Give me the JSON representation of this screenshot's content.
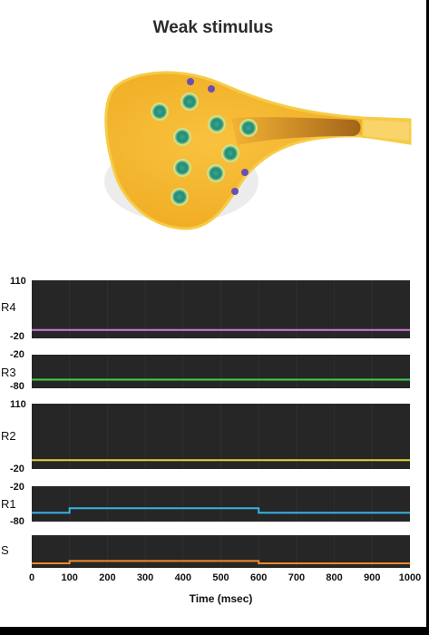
{
  "title": "Weak stimulus",
  "colors": {
    "soma": "#f4b631",
    "soma_edge": "#f8cf52",
    "vesicle": "#1f8b78",
    "receptor": "#6a4fb3",
    "panel_bg": "#262626",
    "R4": "#d47ad9",
    "R3": "#3fd24a",
    "R2": "#e8d23a",
    "R1": "#36b3e6",
    "S": "#f08a2a"
  },
  "chart_data": {
    "type": "line",
    "x_label": "Time (msec)",
    "xlim": [
      0,
      1000
    ],
    "x_ticks": [
      "0",
      "100",
      "200",
      "300",
      "400",
      "500",
      "600",
      "700",
      "800",
      "900",
      "1000"
    ],
    "panels": [
      {
        "name": "R4",
        "ymax_label": "110",
        "ymin_label": "-20",
        "ylim": [
          -20,
          110
        ],
        "x": [
          0,
          1000
        ],
        "y": [
          -10,
          -10
        ]
      },
      {
        "name": "R3",
        "ymax_label": "-20",
        "ymin_label": "-80",
        "ylim": [
          -80,
          -20
        ],
        "x": [
          0,
          1000
        ],
        "y": [
          -70,
          -70
        ]
      },
      {
        "name": "R2",
        "ymax_label": "110",
        "ymin_label": "-20",
        "ylim": [
          -20,
          110
        ],
        "x": [
          0,
          1000
        ],
        "y": [
          -10,
          -10
        ]
      },
      {
        "name": "R1",
        "ymax_label": "-20",
        "ymin_label": "-80",
        "ylim": [
          -80,
          -20
        ],
        "x": [
          0,
          100,
          100,
          600,
          600,
          1000
        ],
        "y": [
          -70,
          -70,
          -60,
          -60,
          -70,
          -70
        ]
      },
      {
        "name": "S",
        "ymax_label": "",
        "ymin_label": "",
        "ylim": [
          0,
          1
        ],
        "x": [
          0,
          100,
          100,
          600,
          600,
          1000
        ],
        "y": [
          0,
          0,
          0.1,
          0.1,
          0,
          0
        ]
      }
    ]
  }
}
